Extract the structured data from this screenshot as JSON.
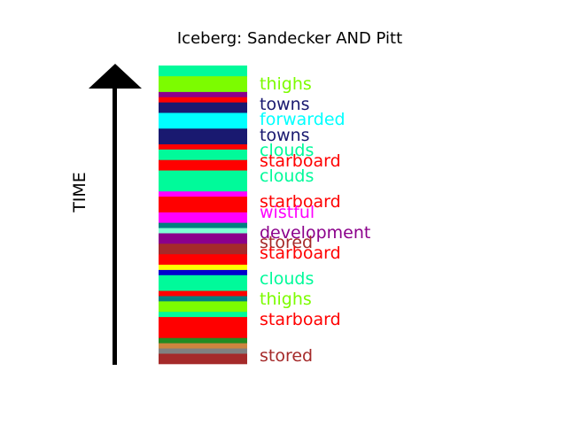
{
  "chart_data": {
    "type": "stacked-band",
    "title": "Iceberg: Sandecker AND Pitt",
    "ylabel": "TIME",
    "time_direction": "up",
    "bands": [
      {
        "color": "#a52a2a",
        "weight": 2
      },
      {
        "color": "#808080",
        "weight": 1
      },
      {
        "color": "#cd853f",
        "weight": 1
      },
      {
        "color": "#228b22",
        "weight": 1
      },
      {
        "color": "#ff0000",
        "weight": 4
      },
      {
        "color": "#00fa9a",
        "weight": 1
      },
      {
        "color": "#7cfc00",
        "weight": 2
      },
      {
        "color": "#008080",
        "weight": 1
      },
      {
        "color": "#ff0000",
        "weight": 1
      },
      {
        "color": "#00fa9a",
        "weight": 3
      },
      {
        "color": "#0000cd",
        "weight": 1
      },
      {
        "color": "#ffff00",
        "weight": 1
      },
      {
        "color": "#ff0000",
        "weight": 2
      },
      {
        "color": "#a52a2a",
        "weight": 2
      },
      {
        "color": "#8b008b",
        "weight": 2
      },
      {
        "color": "#7fffd4",
        "weight": 1
      },
      {
        "color": "#008080",
        "weight": 1
      },
      {
        "color": "#ff00ff",
        "weight": 2
      },
      {
        "color": "#ff0000",
        "weight": 3
      },
      {
        "color": "#ff00ff",
        "weight": 1
      },
      {
        "color": "#00fa9a",
        "weight": 4
      },
      {
        "color": "#ff0000",
        "weight": 2
      },
      {
        "color": "#00fa9a",
        "weight": 2
      },
      {
        "color": "#ff0000",
        "weight": 1
      },
      {
        "color": "#191970",
        "weight": 3
      },
      {
        "color": "#00ffff",
        "weight": 3
      },
      {
        "color": "#191970",
        "weight": 2
      },
      {
        "color": "#ff0000",
        "weight": 1
      },
      {
        "color": "#8b008b",
        "weight": 1
      },
      {
        "color": "#7cfc00",
        "weight": 3
      },
      {
        "color": "#00fa9a",
        "weight": 2
      }
    ],
    "labels": [
      {
        "text": "thighs",
        "color": "#7cfc00"
      },
      {
        "text": "towns",
        "color": "#191970"
      },
      {
        "text": "forwarded",
        "color": "#00ffff"
      },
      {
        "text": "towns",
        "color": "#191970"
      },
      {
        "text": "clouds",
        "color": "#00fa9a"
      },
      {
        "text": "starboard",
        "color": "#ff0000"
      },
      {
        "text": "clouds",
        "color": "#00fa9a"
      },
      {
        "text": "starboard",
        "color": "#ff0000"
      },
      {
        "text": "wistful",
        "color": "#ff00ff"
      },
      {
        "text": "development",
        "color": "#8b008b"
      },
      {
        "text": "stored",
        "color": "#a52a2a"
      },
      {
        "text": "starboard",
        "color": "#ff0000"
      },
      {
        "text": "clouds",
        "color": "#00fa9a"
      },
      {
        "text": "thighs",
        "color": "#7cfc00"
      },
      {
        "text": "starboard",
        "color": "#ff0000"
      },
      {
        "text": "stored",
        "color": "#a52a2a"
      }
    ]
  }
}
